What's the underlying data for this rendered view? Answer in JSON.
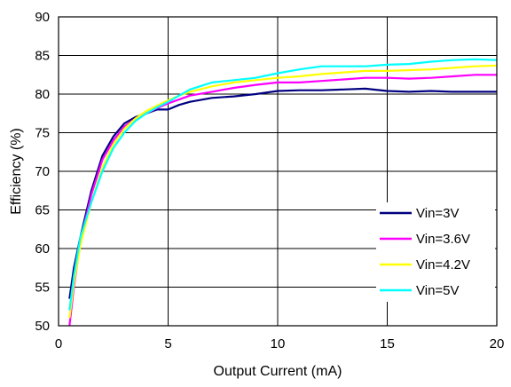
{
  "chart_data": {
    "type": "line",
    "title": "",
    "xlabel": "Output Current (mA)",
    "ylabel": "Efficiency (%)",
    "xlim": [
      0,
      20
    ],
    "ylim": [
      50,
      90
    ],
    "xticks": [
      0,
      5,
      10,
      15,
      20
    ],
    "yticks": [
      50,
      55,
      60,
      65,
      70,
      75,
      80,
      85,
      90
    ],
    "grid": true,
    "legend_position": "bottom-right",
    "series": [
      {
        "name": "Vin=3V",
        "color": "#000080",
        "x": [
          0.5,
          0.7,
          1.0,
          1.5,
          2.0,
          2.5,
          3.0,
          3.5,
          4.0,
          4.5,
          5.0,
          5.5,
          6.0,
          7.0,
          8.0,
          9.0,
          10.0,
          11.0,
          12.0,
          13.0,
          14.0,
          15.0,
          16.0,
          17.0,
          18.0,
          19.0,
          20.0
        ],
        "y": [
          53.5,
          57.5,
          61.5,
          67.5,
          72.0,
          74.5,
          76.2,
          77.0,
          77.5,
          78.0,
          78.0,
          78.6,
          79.0,
          79.5,
          79.7,
          80.0,
          80.4,
          80.5,
          80.5,
          80.6,
          80.7,
          80.4,
          80.3,
          80.4,
          80.3,
          80.3,
          80.3
        ]
      },
      {
        "name": "Vin=3.6V",
        "color": "#ff00ff",
        "x": [
          0.5,
          0.7,
          1.0,
          1.5,
          2.0,
          2.5,
          3.0,
          3.5,
          4.0,
          4.5,
          5.0,
          5.5,
          6.0,
          7.0,
          8.0,
          9.0,
          10.0,
          11.0,
          12.0,
          13.0,
          14.0,
          15.0,
          16.0,
          17.0,
          18.0,
          19.0,
          20.0
        ],
        "y": [
          50.0,
          55.0,
          61.0,
          67.0,
          71.5,
          74.0,
          75.8,
          76.8,
          77.5,
          78.2,
          78.8,
          79.3,
          79.8,
          80.3,
          80.8,
          81.2,
          81.5,
          81.5,
          81.7,
          81.9,
          82.1,
          82.1,
          82.0,
          82.1,
          82.3,
          82.5,
          82.5
        ]
      },
      {
        "name": "Vin=4.2V",
        "color": "#ffff00",
        "x": [
          0.5,
          0.7,
          1.0,
          1.5,
          2.0,
          2.5,
          3.0,
          3.5,
          4.0,
          4.5,
          5.0,
          5.5,
          6.0,
          7.0,
          8.0,
          9.0,
          10.0,
          11.0,
          12.0,
          13.0,
          14.0,
          15.0,
          16.0,
          17.0,
          18.0,
          19.0,
          20.0
        ],
        "y": [
          51.0,
          55.5,
          60.5,
          66.0,
          70.5,
          73.5,
          75.5,
          76.8,
          77.8,
          78.5,
          79.2,
          79.8,
          80.3,
          81.0,
          81.5,
          81.8,
          82.1,
          82.3,
          82.6,
          82.8,
          83.0,
          83.0,
          83.1,
          83.2,
          83.4,
          83.6,
          83.7
        ]
      },
      {
        "name": "Vin=5V",
        "color": "#00ffff",
        "x": [
          0.5,
          0.7,
          1.0,
          1.5,
          2.0,
          2.5,
          3.0,
          3.5,
          4.0,
          4.5,
          5.0,
          5.5,
          6.0,
          7.0,
          8.0,
          9.0,
          10.0,
          11.0,
          12.0,
          13.0,
          14.0,
          15.0,
          16.0,
          17.0,
          18.0,
          19.0,
          20.0
        ],
        "y": [
          52.0,
          56.5,
          61.5,
          66.0,
          70.0,
          73.0,
          75.0,
          76.5,
          77.5,
          78.3,
          79.0,
          79.8,
          80.6,
          81.5,
          81.8,
          82.1,
          82.7,
          83.2,
          83.6,
          83.6,
          83.6,
          83.8,
          83.9,
          84.2,
          84.4,
          84.5,
          84.4
        ]
      }
    ]
  }
}
